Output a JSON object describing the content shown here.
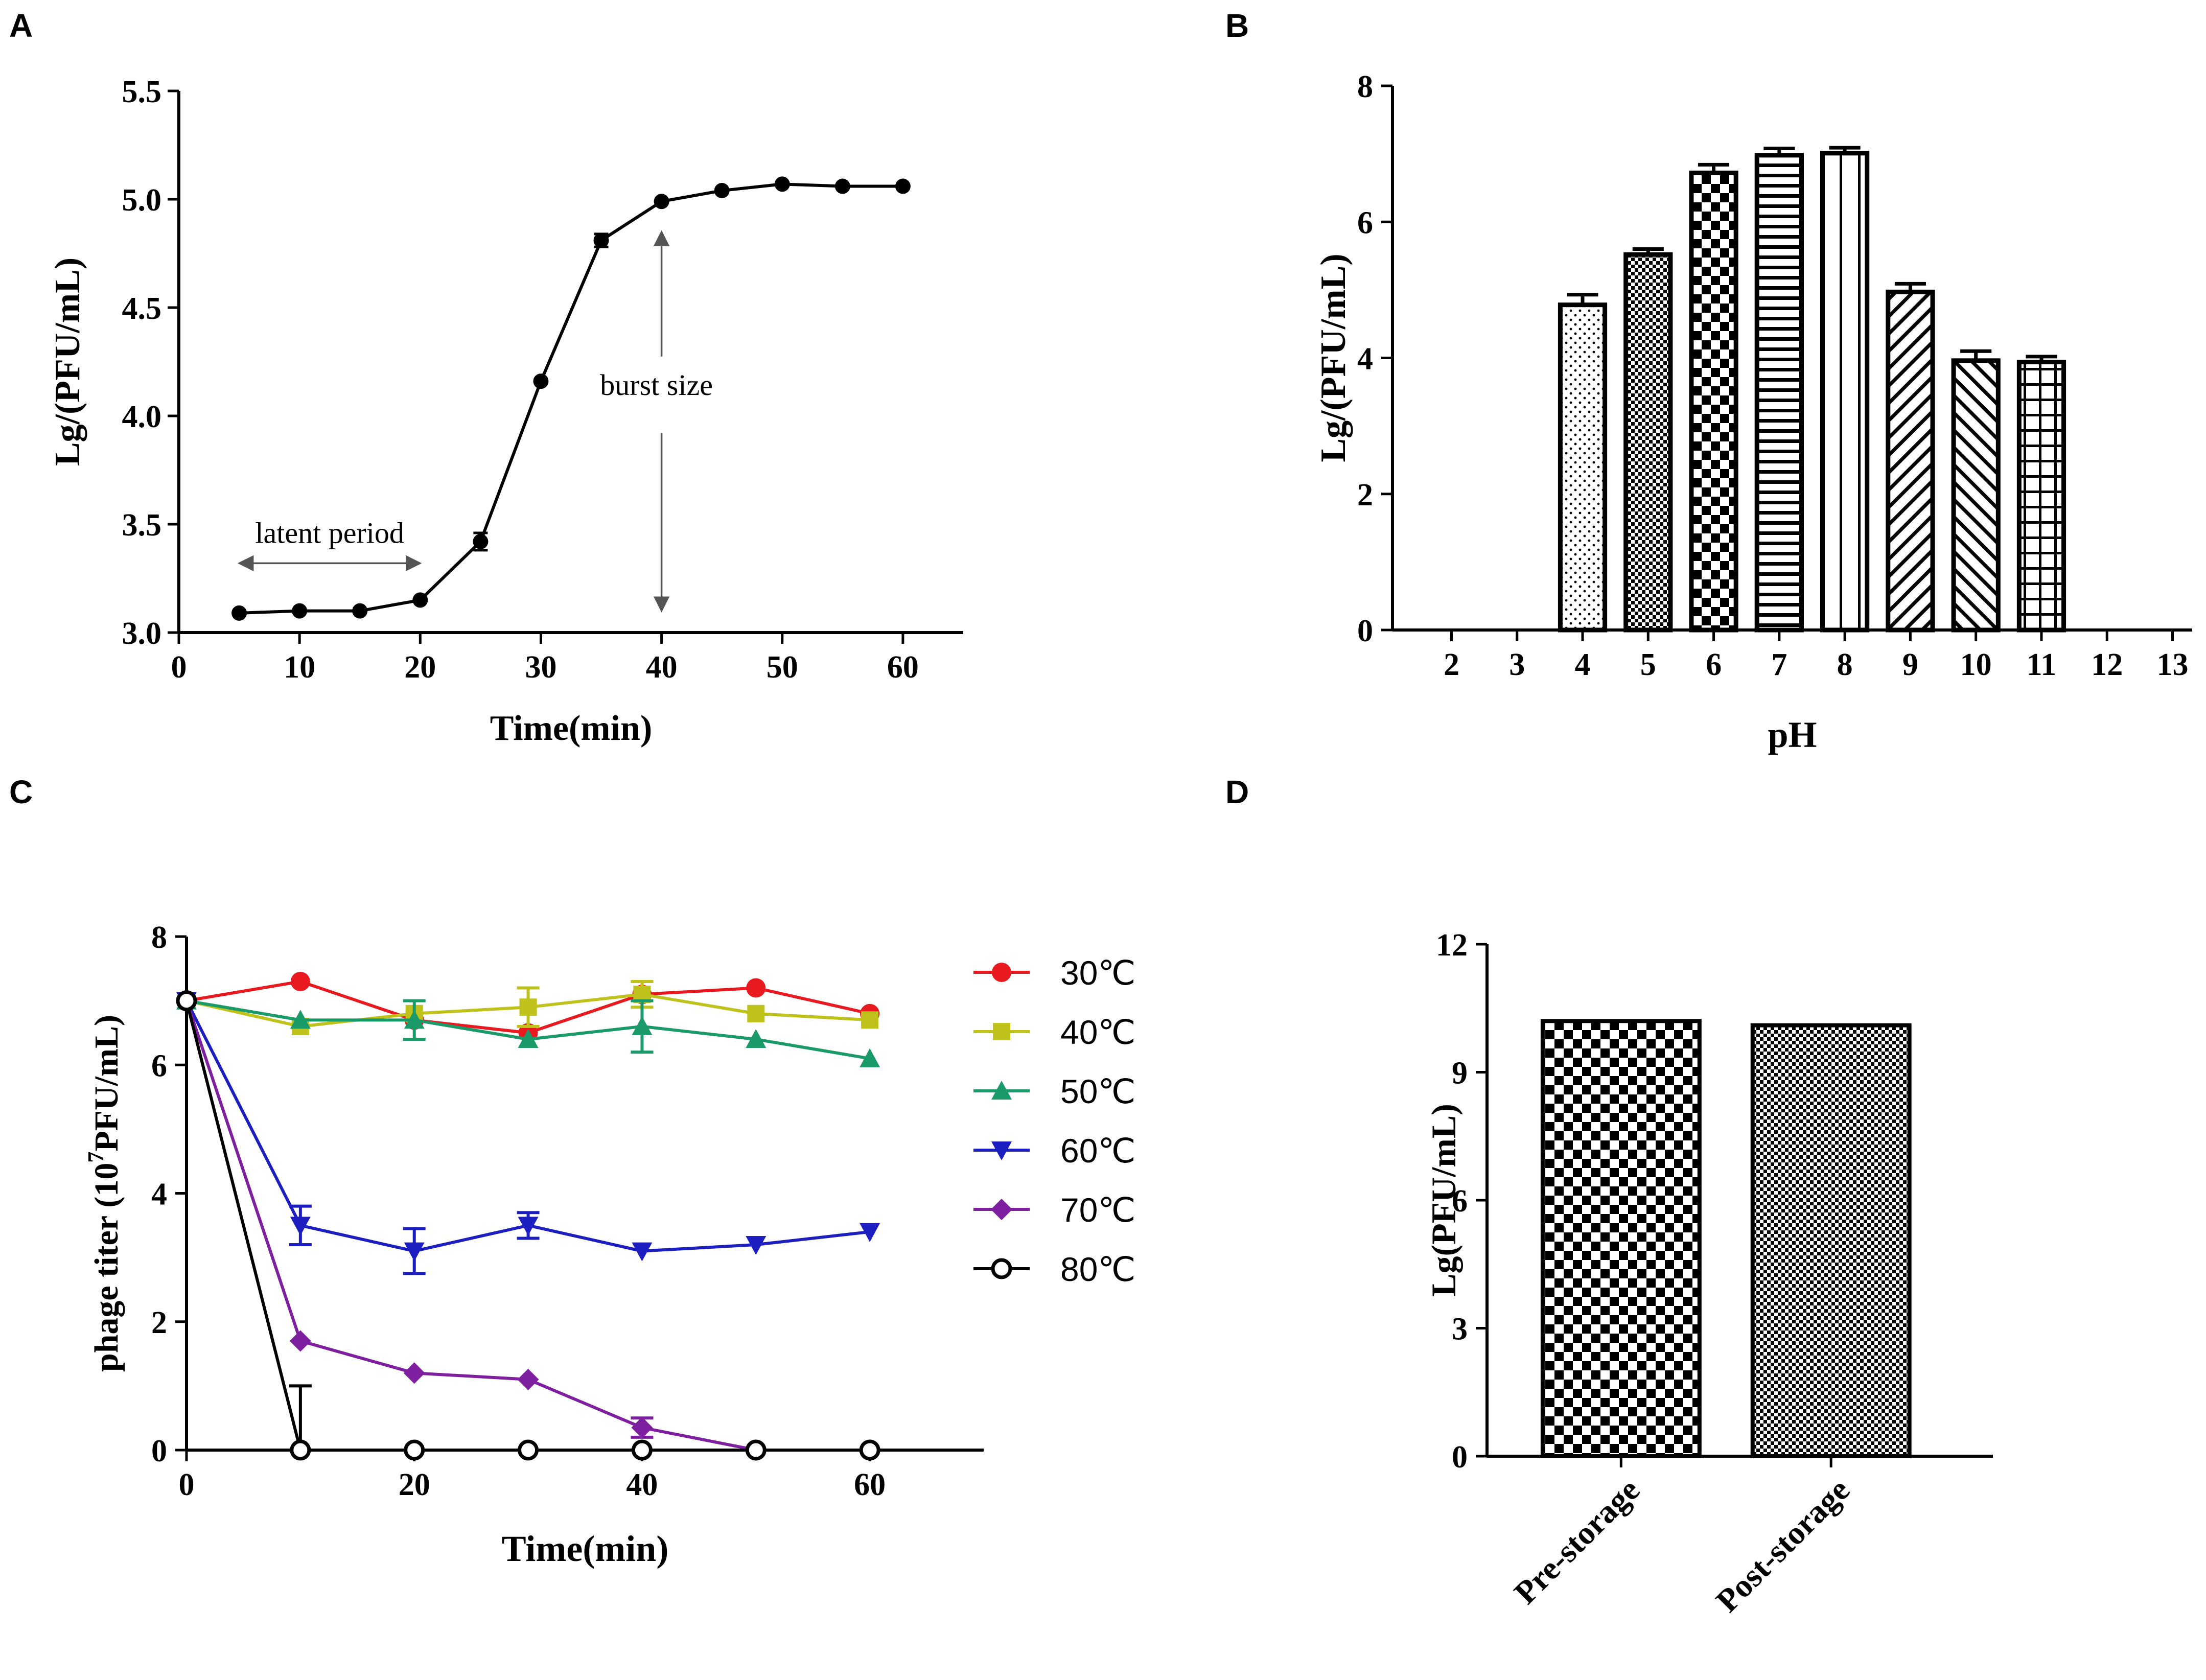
{
  "panels": {
    "A": {
      "letter": "A"
    },
    "B": {
      "letter": "B"
    },
    "C": {
      "letter": "C"
    },
    "D": {
      "letter": "D"
    }
  },
  "chart_data": [
    {
      "id": "A",
      "type": "line",
      "xlabel": "Time(min)",
      "ylabel": "Lg/(PFU/mL)",
      "xlim": [
        0,
        65
      ],
      "ylim": [
        3.0,
        5.5
      ],
      "xticks": [
        0,
        10,
        20,
        30,
        40,
        50,
        60
      ],
      "yticks": [
        3.0,
        3.5,
        4.0,
        4.5,
        5.0,
        5.5
      ],
      "ytick_labels": [
        "3.0",
        "3.5",
        "4.0",
        "4.5",
        "5.0",
        "5.5"
      ],
      "series": [
        {
          "name": "titer",
          "color": "#000000",
          "x": [
            5,
            10,
            15,
            20,
            25,
            30,
            35,
            40,
            45,
            50,
            55,
            60
          ],
          "y": [
            3.09,
            3.1,
            3.1,
            3.15,
            3.42,
            4.16,
            4.81,
            4.99,
            5.04,
            5.07,
            5.06,
            5.06
          ],
          "err": [
            0,
            0,
            0,
            0,
            0.04,
            0,
            0.03,
            0,
            0,
            0,
            0,
            0
          ]
        }
      ],
      "annotations": {
        "latent": {
          "text": "latent period",
          "x_from": 5,
          "x_to": 20,
          "y": 3.32
        },
        "burst": {
          "text": "burst size",
          "x": 40,
          "y_from": 3.1,
          "y_to": 4.85,
          "label_y": 4.05
        }
      }
    },
    {
      "id": "B",
      "type": "bar",
      "xlabel": "pH",
      "ylabel": "Lg/(PFU/mL)",
      "ylim": [
        0,
        8
      ],
      "yticks": [
        0,
        2,
        4,
        6,
        8
      ],
      "categories": [
        "2",
        "3",
        "4",
        "5",
        "6",
        "7",
        "8",
        "9",
        "10",
        "11",
        "12",
        "13"
      ],
      "values": [
        0,
        0,
        4.78,
        5.52,
        6.72,
        6.98,
        7.01,
        4.97,
        3.96,
        3.94,
        0,
        0
      ],
      "err": [
        0,
        0,
        0.15,
        0.08,
        0.12,
        0.1,
        0.08,
        0.12,
        0.14,
        0.08,
        0,
        0
      ],
      "patterns": [
        "none",
        "none",
        "dots",
        "fine-check",
        "check",
        "hlines",
        "vlines",
        "diag-right",
        "diag-left",
        "grid",
        "none",
        "none"
      ]
    },
    {
      "id": "C",
      "type": "line",
      "xlabel": "Time(min)",
      "ylabel_main": "phage titer (10",
      "ylabel_sup": "7",
      "ylabel_tail": "PFU/mL)",
      "xlim": [
        0,
        70
      ],
      "ylim": [
        0,
        8
      ],
      "xticks": [
        0,
        20,
        40,
        60
      ],
      "yticks": [
        0,
        2,
        4,
        6,
        8
      ],
      "series": [
        {
          "name": "30℃",
          "color": "#e8191f",
          "marker": "circle",
          "x": [
            0,
            10,
            20,
            30,
            40,
            50,
            60
          ],
          "y": [
            7.0,
            7.3,
            6.7,
            6.5,
            7.1,
            7.2,
            6.8
          ],
          "err": [
            0,
            0,
            0,
            0,
            0,
            0,
            0
          ]
        },
        {
          "name": "40℃",
          "color": "#bfc21a",
          "marker": "square",
          "x": [
            0,
            10,
            20,
            30,
            40,
            50,
            60
          ],
          "y": [
            7.0,
            6.6,
            6.8,
            6.9,
            7.1,
            6.8,
            6.7
          ],
          "err": [
            0,
            0,
            0,
            0.3,
            0.2,
            0,
            0
          ]
        },
        {
          "name": "50℃",
          "color": "#1a9a68",
          "marker": "triangle-up",
          "x": [
            0,
            10,
            20,
            30,
            40,
            50,
            60
          ],
          "y": [
            7.0,
            6.7,
            6.7,
            6.4,
            6.6,
            6.4,
            6.1
          ],
          "err": [
            0,
            0,
            0.3,
            0,
            0.4,
            0,
            0
          ]
        },
        {
          "name": "60℃",
          "color": "#1c1ebf",
          "marker": "triangle-down",
          "x": [
            0,
            10,
            20,
            30,
            40,
            50,
            60
          ],
          "y": [
            7.0,
            3.5,
            3.1,
            3.5,
            3.1,
            3.2,
            3.4
          ],
          "err": [
            0,
            0.3,
            0.35,
            0.2,
            0,
            0,
            0
          ]
        },
        {
          "name": "70℃",
          "color": "#7e1fa0",
          "marker": "diamond",
          "x": [
            0,
            10,
            20,
            30,
            40,
            50,
            60
          ],
          "y": [
            7.0,
            1.7,
            1.2,
            1.1,
            0.35,
            0.0,
            0.0
          ],
          "err": [
            0,
            0,
            0,
            0,
            0.15,
            0,
            0
          ]
        },
        {
          "name": "80℃",
          "color": "#000000",
          "marker": "open-circle",
          "x": [
            0,
            10,
            20,
            30,
            40,
            50,
            60
          ],
          "y": [
            7.0,
            0.0,
            0.0,
            0.0,
            0.0,
            0.0,
            0.0
          ],
          "err": [
            0,
            1.0,
            0,
            0,
            0,
            0,
            0
          ]
        }
      ]
    },
    {
      "id": "D",
      "type": "bar",
      "ylabel": "Lg(PFU/mL)",
      "ylim": [
        0,
        12
      ],
      "yticks": [
        0,
        3,
        6,
        9,
        12
      ],
      "categories": [
        "Pre-storage",
        "Post-storage"
      ],
      "values": [
        10.2,
        10.1
      ],
      "patterns": [
        "check",
        "fine-check"
      ]
    }
  ]
}
